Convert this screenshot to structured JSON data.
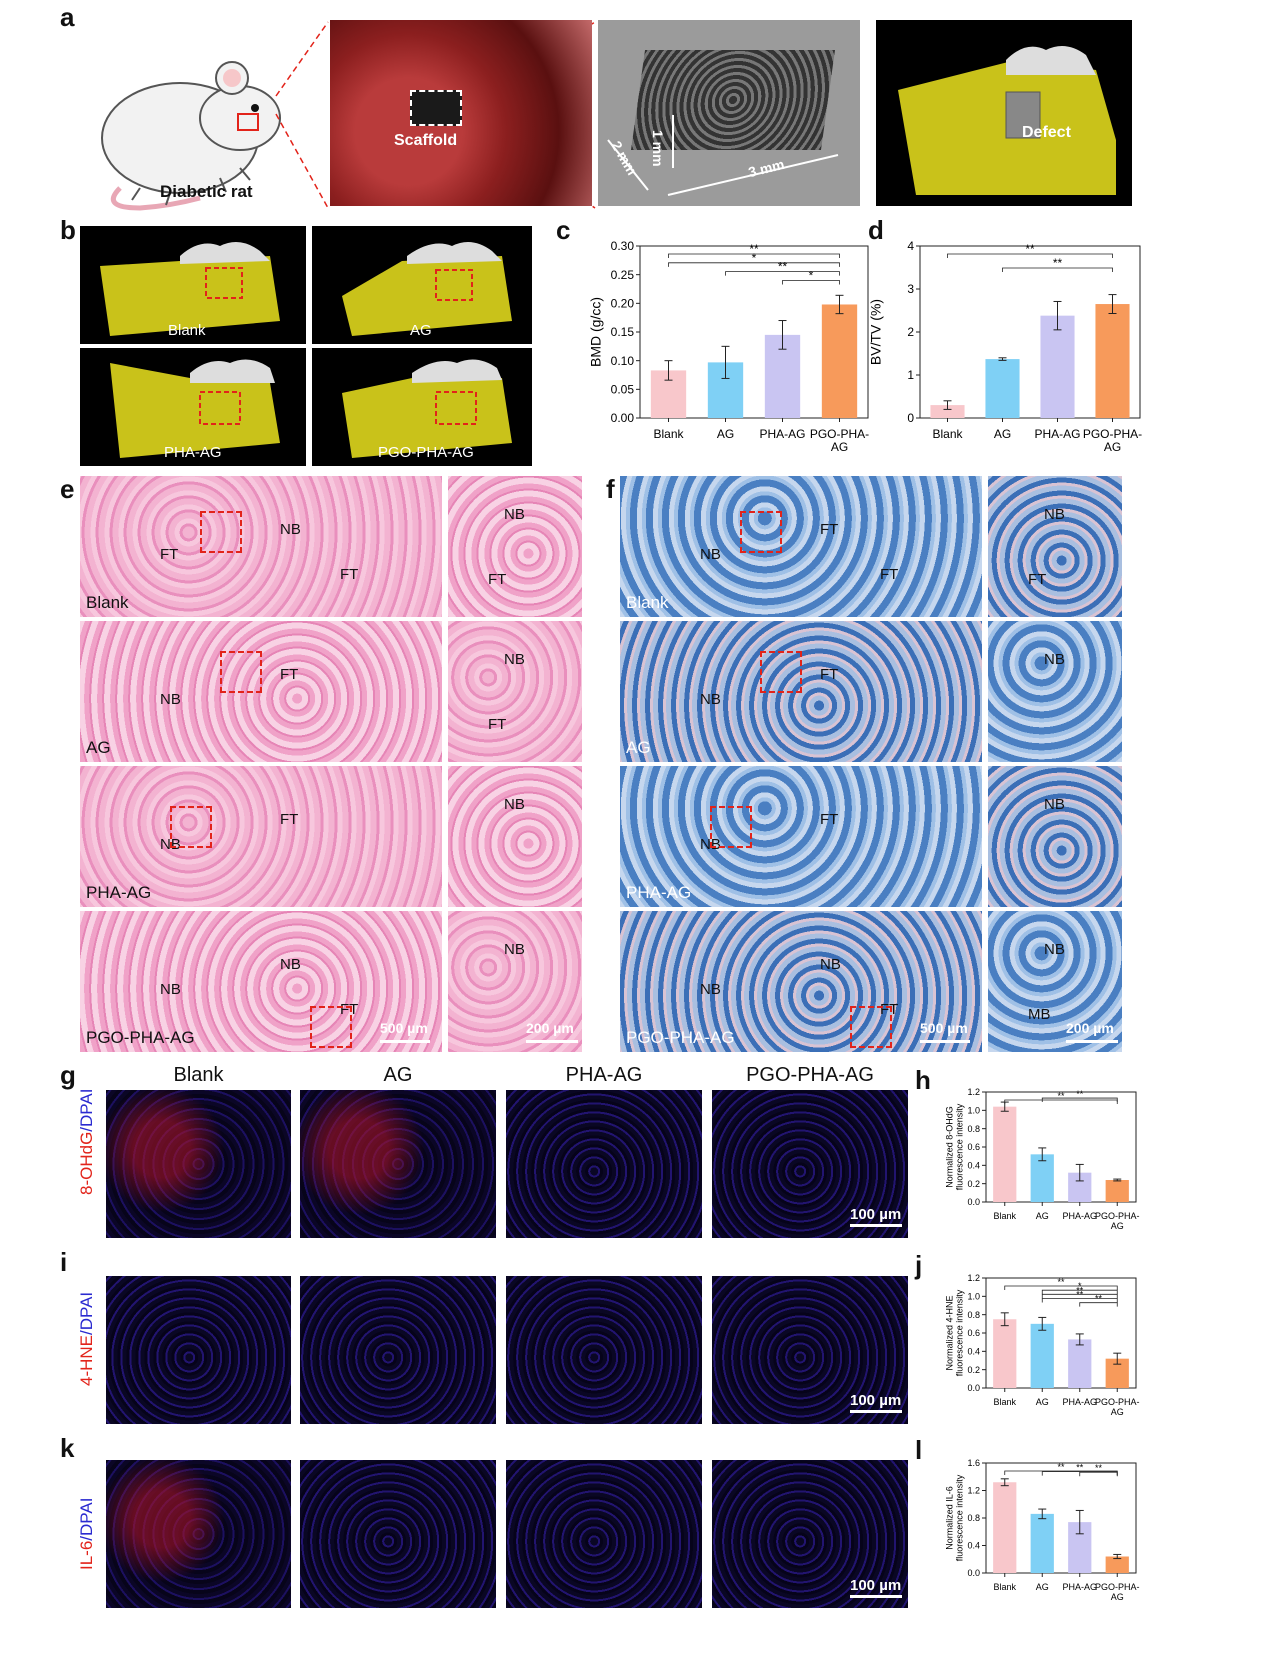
{
  "panel_a": {
    "letter": "a",
    "rat_label": "Diabetic rat",
    "scaffold_label": "Scaffold",
    "dim_w": "2 mm",
    "dim_h": "1 mm",
    "dim_l": "3 mm",
    "defect_label": "Defect"
  },
  "panel_b": {
    "letter": "b",
    "labels": [
      "Blank",
      "AG",
      "PHA-AG",
      "PGO-PHA-AG"
    ]
  },
  "panel_e": {
    "letter": "e",
    "rows": [
      {
        "group": "Blank",
        "tags": [
          "FT",
          "NB",
          "FT"
        ],
        "zoom_tags": [
          "NB",
          "FT"
        ]
      },
      {
        "group": "AG",
        "tags": [
          "NB",
          "FT"
        ],
        "zoom_tags": [
          "NB",
          "FT"
        ]
      },
      {
        "group": "PHA-AG",
        "tags": [
          "NB",
          "FT"
        ],
        "zoom_tags": [
          "NB"
        ]
      },
      {
        "group": "PGO-PHA-AG",
        "tags": [
          "NB",
          "NB",
          "FT"
        ],
        "zoom_tags": [
          "NB"
        ]
      }
    ],
    "scale_main": "500 µm",
    "scale_zoom": "200 µm"
  },
  "panel_f": {
    "letter": "f",
    "rows": [
      {
        "group": "Blank",
        "tags": [
          "NB",
          "FT",
          "FT"
        ],
        "zoom_tags": [
          "NB",
          "FT"
        ]
      },
      {
        "group": "AG",
        "tags": [
          "NB",
          "FT"
        ],
        "zoom_tags": [
          "NB"
        ]
      },
      {
        "group": "PHA-AG",
        "tags": [
          "NB",
          "FT"
        ],
        "zoom_tags": [
          "NB"
        ]
      },
      {
        "group": "PGO-PHA-AG",
        "tags": [
          "NB",
          "NB",
          "FT"
        ],
        "zoom_tags": [
          "NB",
          "MB"
        ]
      }
    ],
    "scale_main": "500 µm",
    "scale_zoom": "200 µm"
  },
  "panel_g": {
    "letter": "g",
    "columns": [
      "Blank",
      "AG",
      "PHA-AG",
      "PGO-PHA-AG"
    ],
    "row_red": "8-OHdG",
    "row_blue": "/DPAI",
    "scale": "100 µm"
  },
  "panel_i": {
    "letter": "i",
    "row_red": "4-HNE",
    "row_blue": "/DPAI",
    "scale": "100 µm"
  },
  "panel_k": {
    "letter": "k",
    "row_red": "IL-6",
    "row_blue": "/DPAI",
    "scale": "100 µm"
  },
  "colors": {
    "blank": "#f8c7cb",
    "ag": "#7fd0f5",
    "pha": "#c9c5f2",
    "pgo": "#f79a5b",
    "red_box": "#e2231a",
    "mandible": "#c9c21a"
  },
  "chart_data": [
    {
      "id": "c",
      "letter": "c",
      "type": "bar",
      "categories": [
        "Blank",
        "AG",
        "PHA-AG",
        "PGO-PHA-AG"
      ],
      "values": [
        0.083,
        0.097,
        0.145,
        0.198
      ],
      "errors": [
        0.017,
        0.028,
        0.025,
        0.016
      ],
      "ylabel": "BMD (g/cc)",
      "ylim": [
        0,
        0.3
      ],
      "yticks": [
        "0.00",
        "0.05",
        "0.10",
        "0.15",
        "0.20",
        "0.25",
        "0.30"
      ],
      "significance": [
        {
          "from": 0,
          "to": 3,
          "label": "**"
        },
        {
          "from": 0,
          "to": 3,
          "label": "*"
        },
        {
          "from": 1,
          "to": 3,
          "label": "**"
        },
        {
          "from": 2,
          "to": 3,
          "label": "*"
        }
      ]
    },
    {
      "id": "d",
      "letter": "d",
      "type": "bar",
      "categories": [
        "Blank",
        "AG",
        "PHA-AG",
        "PGO-PHA-AG"
      ],
      "values": [
        0.3,
        1.37,
        2.38,
        2.65
      ],
      "errors": [
        0.1,
        0.03,
        0.33,
        0.22
      ],
      "ylabel": "BV/TV (%)",
      "ylim": [
        0,
        4
      ],
      "yticks": [
        "0",
        "1",
        "2",
        "3",
        "4"
      ],
      "significance": [
        {
          "from": 0,
          "to": 3,
          "label": "**"
        },
        {
          "from": 1,
          "to": 3,
          "label": "**"
        }
      ]
    },
    {
      "id": "h",
      "letter": "h",
      "type": "bar",
      "categories": [
        "Blank",
        "AG",
        "PHA-AG",
        "PGO-PHA-AG"
      ],
      "values": [
        1.04,
        0.52,
        0.32,
        0.24
      ],
      "errors": [
        0.05,
        0.07,
        0.09,
        0.01
      ],
      "ylabel": "Normalized 8-OHdG fluorescence intensity",
      "ylim": [
        0,
        1.2
      ],
      "yticks": [
        "0.0",
        "0.2",
        "0.4",
        "0.6",
        "0.8",
        "1.0",
        "1.2"
      ],
      "significance": [
        {
          "from": 0,
          "to": 3,
          "label": "**"
        },
        {
          "from": 1,
          "to": 3,
          "label": "**"
        }
      ]
    },
    {
      "id": "j",
      "letter": "j",
      "type": "bar",
      "categories": [
        "Blank",
        "AG",
        "PHA-AG",
        "PGO-PHA-AG"
      ],
      "values": [
        0.75,
        0.7,
        0.53,
        0.32
      ],
      "errors": [
        0.07,
        0.07,
        0.06,
        0.06
      ],
      "ylabel": "Normalized 4-HNE fluorescence intensity",
      "ylim": [
        0,
        1.2
      ],
      "yticks": [
        "0.0",
        "0.2",
        "0.4",
        "0.6",
        "0.8",
        "1.0",
        "1.2"
      ],
      "significance": [
        {
          "from": 0,
          "to": 3,
          "label": "**"
        },
        {
          "from": 1,
          "to": 3,
          "label": "*"
        },
        {
          "from": 1,
          "to": 3,
          "label": "**"
        },
        {
          "from": 1,
          "to": 3,
          "label": "**"
        },
        {
          "from": 2,
          "to": 3,
          "label": "**"
        }
      ]
    },
    {
      "id": "l",
      "letter": "l",
      "type": "bar",
      "categories": [
        "Blank",
        "AG",
        "PHA-AG",
        "PGO-PHA-AG"
      ],
      "values": [
        1.32,
        0.86,
        0.74,
        0.24
      ],
      "errors": [
        0.05,
        0.07,
        0.17,
        0.03
      ],
      "ylabel": "Normalized IL-6 fluorescence intensity",
      "ylim": [
        0,
        1.6
      ],
      "yticks": [
        "0.0",
        "0.4",
        "0.8",
        "1.2",
        "1.6"
      ],
      "significance": [
        {
          "from": 0,
          "to": 3,
          "label": "**"
        },
        {
          "from": 1,
          "to": 3,
          "label": "**"
        },
        {
          "from": 2,
          "to": 3,
          "label": "**"
        }
      ]
    }
  ]
}
